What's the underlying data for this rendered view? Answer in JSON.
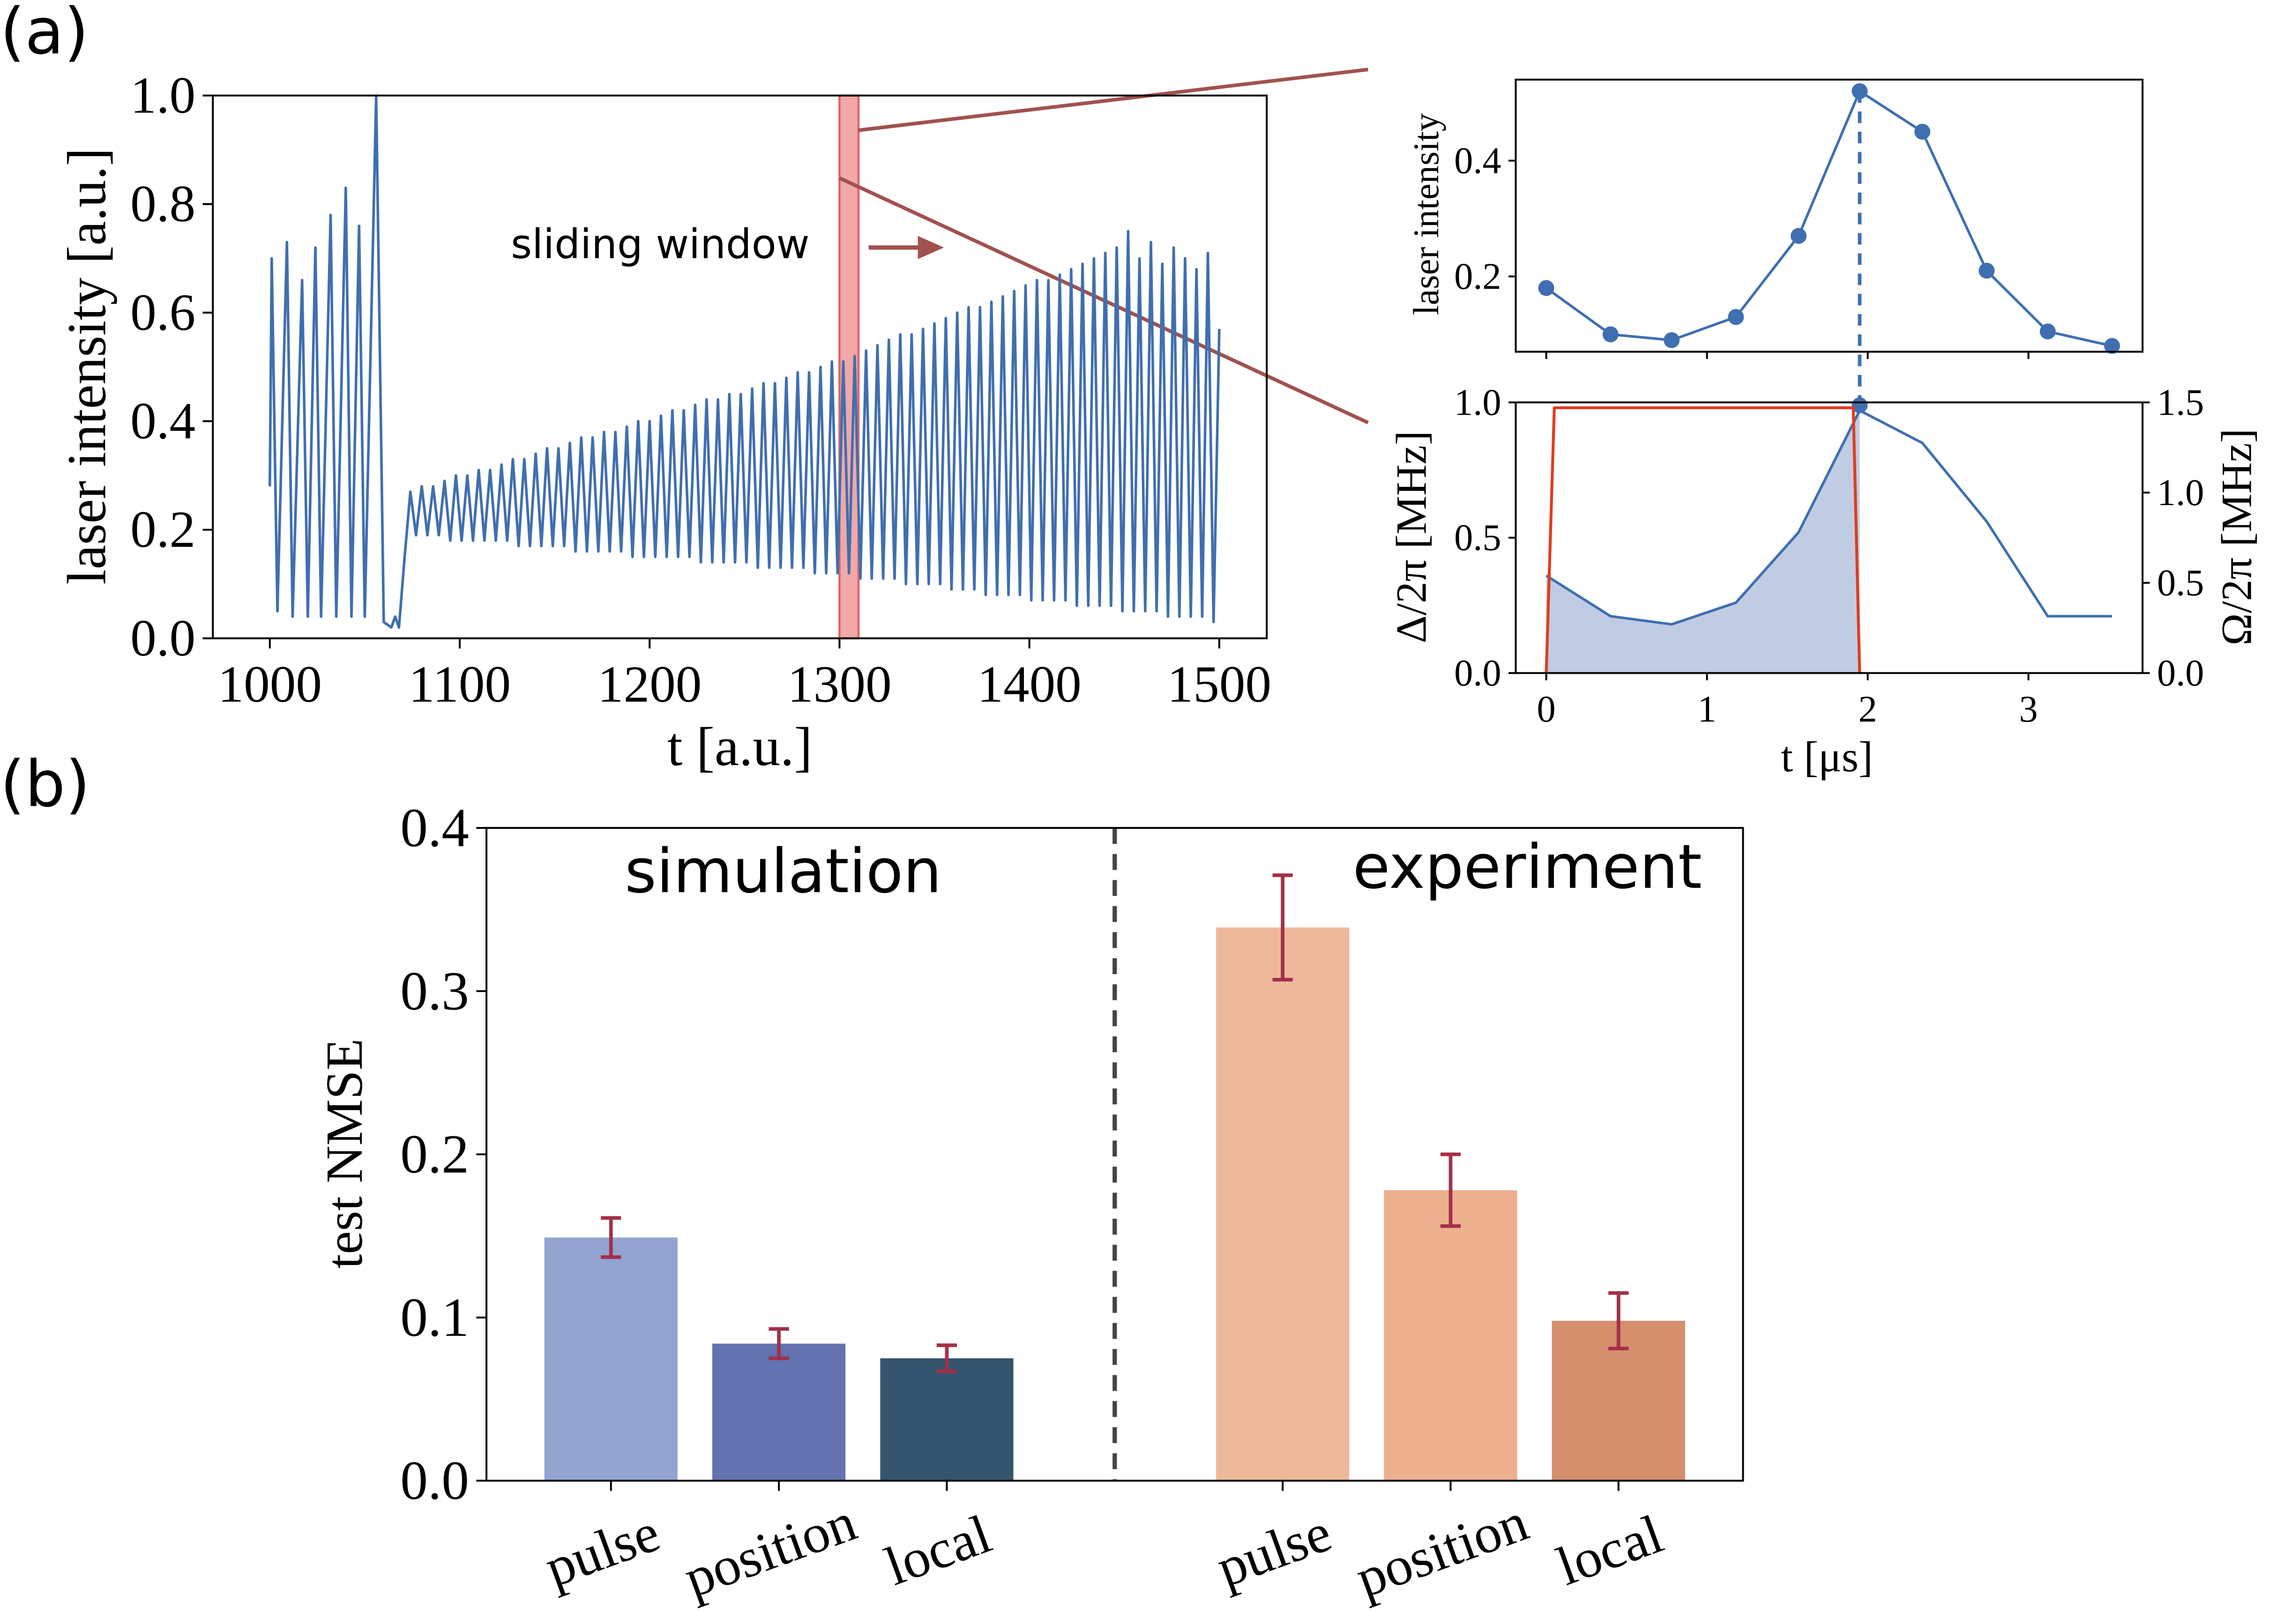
{
  "chart_data": [
    {
      "type": "line",
      "panel": "(a)",
      "xlabel": "t [a.u.]",
      "ylabel": "laser intensity [a.u.]",
      "color": "#3f6fb0",
      "xlim": [
        970,
        1525
      ],
      "ylim": [
        0,
        1
      ],
      "xticks": [
        1000,
        1100,
        1200,
        1300,
        1400,
        1500
      ],
      "yticks": [
        {
          "value": 0,
          "label": "0.0"
        },
        {
          "value": 0.2,
          "label": "0.2"
        },
        {
          "value": 0.4,
          "label": "0.4"
        },
        {
          "value": 0.6,
          "label": "0.6"
        },
        {
          "value": 0.8,
          "label": "0.8"
        },
        {
          "value": 1,
          "label": "1.0"
        }
      ],
      "window": [
        1300,
        1310
      ],
      "window_color": "#f0a8a8",
      "annotation": "sliding window",
      "annotation_color": "#a0524e",
      "x": [
        1000,
        1001,
        1004,
        1009,
        1012,
        1017,
        1020,
        1024,
        1027,
        1032,
        1035,
        1040,
        1043,
        1047,
        1050,
        1056,
        1060,
        1064,
        1066,
        1068,
        1071,
        1074,
        1077,
        1080,
        1083,
        1086,
        1089,
        1092,
        1095,
        1098,
        1101,
        1104,
        1107,
        1110,
        1113,
        1116,
        1119,
        1122,
        1125,
        1128,
        1131,
        1134,
        1137,
        1140,
        1143,
        1146,
        1149,
        1152,
        1155,
        1158,
        1161,
        1164,
        1167,
        1170,
        1173,
        1176,
        1179,
        1182,
        1185,
        1188,
        1191,
        1194,
        1197,
        1200,
        1203,
        1206,
        1209,
        1212,
        1215,
        1218,
        1221,
        1224,
        1227,
        1230,
        1233,
        1236,
        1239,
        1242,
        1245,
        1248,
        1251,
        1254,
        1257,
        1260,
        1263,
        1266,
        1269,
        1272,
        1275,
        1278,
        1281,
        1284,
        1287,
        1290,
        1293,
        1296,
        1299,
        1302,
        1305,
        1308,
        1311,
        1314,
        1317,
        1320,
        1323,
        1326,
        1329,
        1332,
        1335,
        1338,
        1341,
        1344,
        1347,
        1350,
        1353,
        1356,
        1359,
        1362,
        1365,
        1368,
        1371,
        1374,
        1377,
        1380,
        1383,
        1386,
        1389,
        1392,
        1395,
        1398,
        1401,
        1404,
        1407,
        1410,
        1413,
        1416,
        1419,
        1422,
        1425,
        1428,
        1431,
        1434,
        1437,
        1440,
        1443,
        1446,
        1449,
        1452,
        1455,
        1458,
        1461,
        1464,
        1467,
        1470,
        1473,
        1476,
        1479,
        1482,
        1485,
        1488,
        1491,
        1494,
        1497,
        1500
      ],
      "values": [
        0.28,
        0.7,
        0.05,
        0.73,
        0.04,
        0.66,
        0.04,
        0.72,
        0.04,
        0.78,
        0.04,
        0.83,
        0.04,
        0.76,
        0.04,
        1.0,
        0.03,
        0.02,
        0.04,
        0.02,
        0.15,
        0.27,
        0.19,
        0.28,
        0.19,
        0.28,
        0.19,
        0.29,
        0.18,
        0.3,
        0.18,
        0.3,
        0.18,
        0.31,
        0.18,
        0.31,
        0.18,
        0.32,
        0.18,
        0.33,
        0.17,
        0.33,
        0.17,
        0.34,
        0.17,
        0.35,
        0.17,
        0.35,
        0.17,
        0.36,
        0.16,
        0.37,
        0.16,
        0.37,
        0.16,
        0.38,
        0.16,
        0.38,
        0.16,
        0.39,
        0.15,
        0.4,
        0.15,
        0.4,
        0.15,
        0.41,
        0.15,
        0.42,
        0.15,
        0.42,
        0.15,
        0.43,
        0.14,
        0.44,
        0.14,
        0.44,
        0.14,
        0.45,
        0.14,
        0.45,
        0.14,
        0.46,
        0.13,
        0.47,
        0.13,
        0.47,
        0.13,
        0.48,
        0.13,
        0.49,
        0.13,
        0.49,
        0.12,
        0.5,
        0.12,
        0.51,
        0.12,
        0.51,
        0.12,
        0.52,
        0.11,
        0.53,
        0.11,
        0.54,
        0.11,
        0.55,
        0.11,
        0.56,
        0.1,
        0.56,
        0.1,
        0.57,
        0.1,
        0.58,
        0.1,
        0.59,
        0.09,
        0.6,
        0.09,
        0.61,
        0.09,
        0.61,
        0.08,
        0.62,
        0.08,
        0.63,
        0.08,
        0.64,
        0.08,
        0.65,
        0.07,
        0.66,
        0.07,
        0.66,
        0.07,
        0.67,
        0.07,
        0.68,
        0.06,
        0.69,
        0.06,
        0.7,
        0.06,
        0.71,
        0.06,
        0.72,
        0.05,
        0.75,
        0.05,
        0.7,
        0.05,
        0.73,
        0.05,
        0.69,
        0.04,
        0.72,
        0.04,
        0.7,
        0.04,
        0.68,
        0.04,
        0.71,
        0.03,
        0.57
      ]
    },
    {
      "type": "line",
      "ylabel": "laser intensity",
      "color": "#3f6fb0",
      "markers": true,
      "xlim": [
        -0.19,
        3.71
      ],
      "ylim": [
        0.07,
        0.54
      ],
      "xticks": [
        0,
        1,
        2,
        3
      ],
      "xtick_labels": false,
      "yticks": [
        0.2,
        0.4
      ],
      "vline": 1.95,
      "x": [
        0,
        0.4,
        0.78,
        1.18,
        1.57,
        1.95,
        2.34,
        2.74,
        3.12,
        3.52
      ],
      "values": [
        0.18,
        0.1,
        0.09,
        0.13,
        0.27,
        0.52,
        0.45,
        0.21,
        0.105,
        0.08
      ]
    },
    {
      "type": "line",
      "xlabel": "t [μs]",
      "ylabel": "Δ/2π [MHz]",
      "y2label": "Ω/2π [MHz]",
      "xlim": [
        -0.19,
        3.71
      ],
      "ylim": [
        0,
        1
      ],
      "y2lim": [
        0,
        1.5
      ],
      "xticks": [
        0,
        1,
        2,
        3
      ],
      "yticks": [
        {
          "value": 0,
          "label": "0.0"
        },
        {
          "value": 0.5,
          "label": "0.5"
        },
        {
          "value": 1,
          "label": "1.0"
        }
      ],
      "y2ticks": [
        {
          "value": 0,
          "label": "0.0"
        },
        {
          "value": 0.5,
          "label": "0.5"
        },
        {
          "value": 1,
          "label": "1.0"
        },
        {
          "value": 1.5,
          "label": "1.5"
        }
      ],
      "series": [
        {
          "color": "#3f6fb0",
          "label_color": "#5b80c0",
          "fill_color": "#b9c6e0",
          "fill_until": 1.95,
          "x": [
            0,
            0.4,
            0.78,
            1.18,
            1.57,
            1.95,
            2.34,
            2.74,
            3.12,
            3.52
          ],
          "values": [
            0.36,
            0.21,
            0.18,
            0.26,
            0.52,
            0.97,
            0.85,
            0.56,
            0.21,
            0.21
          ]
        },
        {
          "color": "#e03c1f",
          "label_color": "#e04a28",
          "axis": "y2",
          "x": [
            0,
            0.05,
            1.91,
            1.95
          ],
          "values": [
            0,
            1.47,
            1.47,
            0
          ]
        }
      ]
    },
    {
      "type": "bar",
      "panel": "(b)",
      "ylabel": "test NMSE",
      "ylim": [
        0,
        0.4
      ],
      "yticks": [
        {
          "value": 0,
          "label": "0.0"
        },
        {
          "value": 0.1,
          "label": "0.1"
        },
        {
          "value": 0.2,
          "label": "0.2"
        },
        {
          "value": 0.3,
          "label": "0.3"
        },
        {
          "value": 0.4,
          "label": "0.4"
        }
      ],
      "groups": [
        "simulation",
        "experiment"
      ],
      "categories": [
        "pulse",
        "position",
        "local",
        null,
        "pulse",
        "position",
        "local"
      ],
      "values": [
        0.149,
        0.084,
        0.075,
        null,
        0.339,
        0.178,
        0.098
      ],
      "errors": [
        0.012,
        0.009,
        0.008,
        null,
        0.032,
        0.022,
        0.017
      ],
      "colors": [
        "#93a3cf",
        "#6372b0",
        "#34556f",
        null,
        "#eeb99a",
        "#ecb08f",
        "#d58f6d"
      ],
      "error_color": "#a3304a"
    }
  ]
}
